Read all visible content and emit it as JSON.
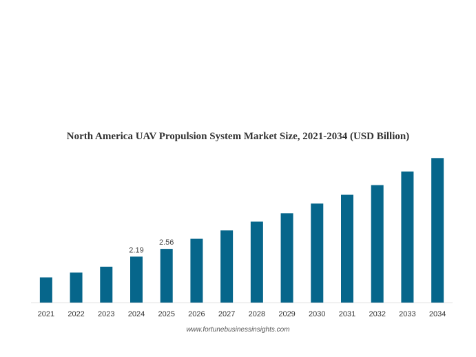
{
  "chart_data": {
    "type": "bar",
    "title": "North America UAV Propulsion System Market Size, 2021-2034 (USD Billion)",
    "xlabel": "",
    "ylabel": "",
    "categories": [
      "2021",
      "2022",
      "2023",
      "2024",
      "2025",
      "2026",
      "2027",
      "2028",
      "2029",
      "2030",
      "2031",
      "2032",
      "2033",
      "2034"
    ],
    "values": [
      1.2,
      1.43,
      1.71,
      2.19,
      2.56,
      3.04,
      3.44,
      3.86,
      4.26,
      4.72,
      5.14,
      5.6,
      6.25,
      6.89
    ],
    "data_labels": [
      {
        "category": "2024",
        "text": "2.19"
      },
      {
        "category": "2025",
        "text": "2.56"
      }
    ],
    "ylim": [
      0,
      7
    ],
    "grid": false,
    "bar_color": "#06668b",
    "axis_color": "#dddddd"
  },
  "source": "www.fortunebusinessinsights.com"
}
